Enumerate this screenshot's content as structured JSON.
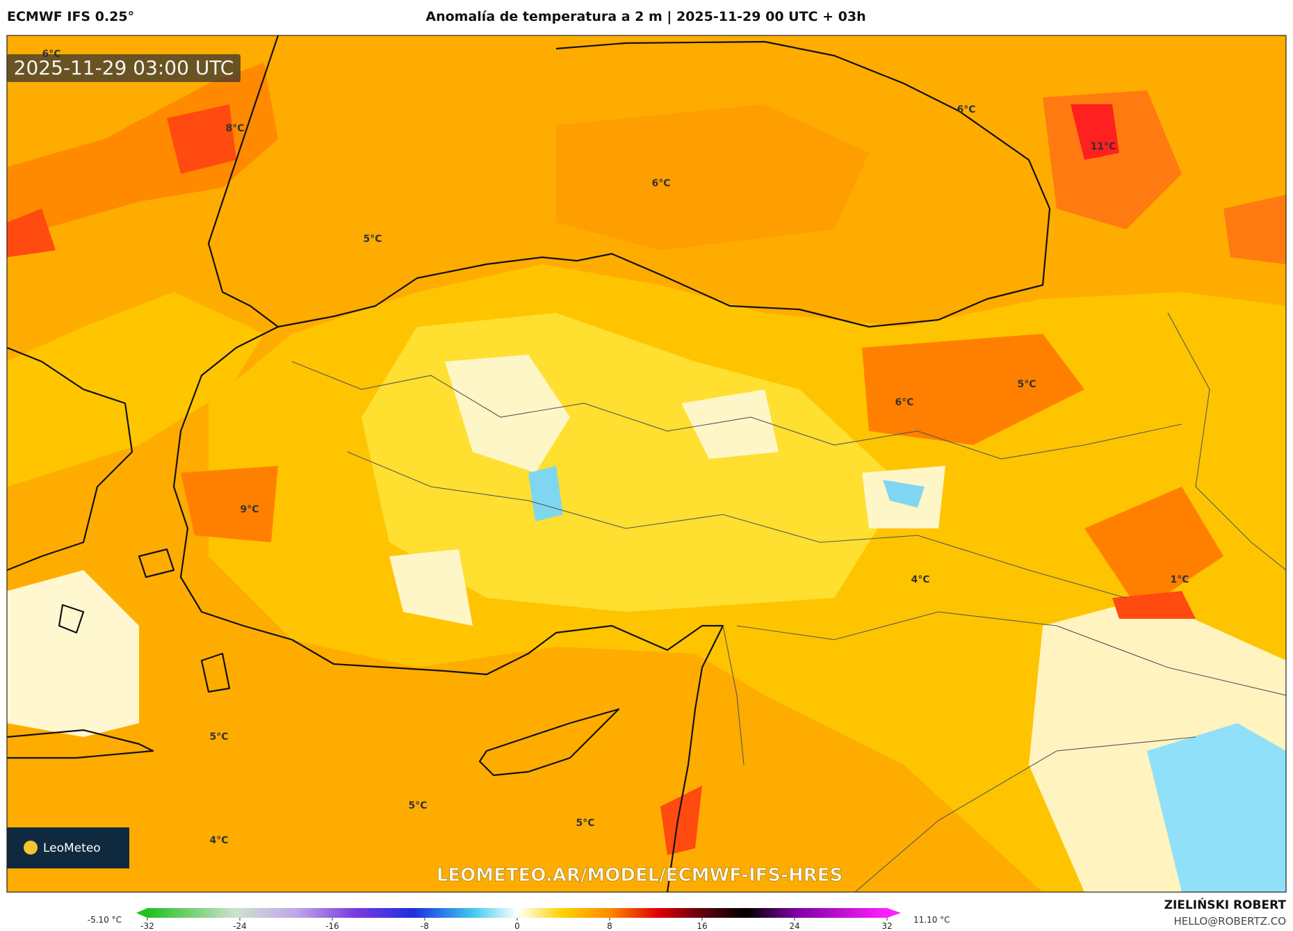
{
  "header": {
    "model": "ECMWF IFS 0.25°",
    "title": "Anomalía de temperatura a 2 m | 2025-11-29 00 UTC + 03h"
  },
  "map": {
    "timestamp": "2025-11-29 03:00 UTC",
    "watermark": "LEOMETEO.AR/MODEL/ECMWF-IFS-HRES",
    "logo": "LeoMeteo",
    "labels": [
      "6°C",
      "8°C",
      "6°C",
      "11°C",
      "6°C",
      "5°C",
      "5°C",
      "6°C",
      "9°C",
      "4°C",
      "1°C",
      "5°C",
      "5°C",
      "5°C",
      "4°C"
    ]
  },
  "colorbar": {
    "min_label": "-5.10 °C",
    "max_label": "11.10 °C",
    "ticks": [
      -32,
      -24,
      -16,
      -8,
      0,
      8,
      16,
      24,
      32
    ]
  },
  "footer": {
    "author": "ZIELIŃSKI ROBERT",
    "email": "HELLO@ROBERTZ.CO"
  }
}
